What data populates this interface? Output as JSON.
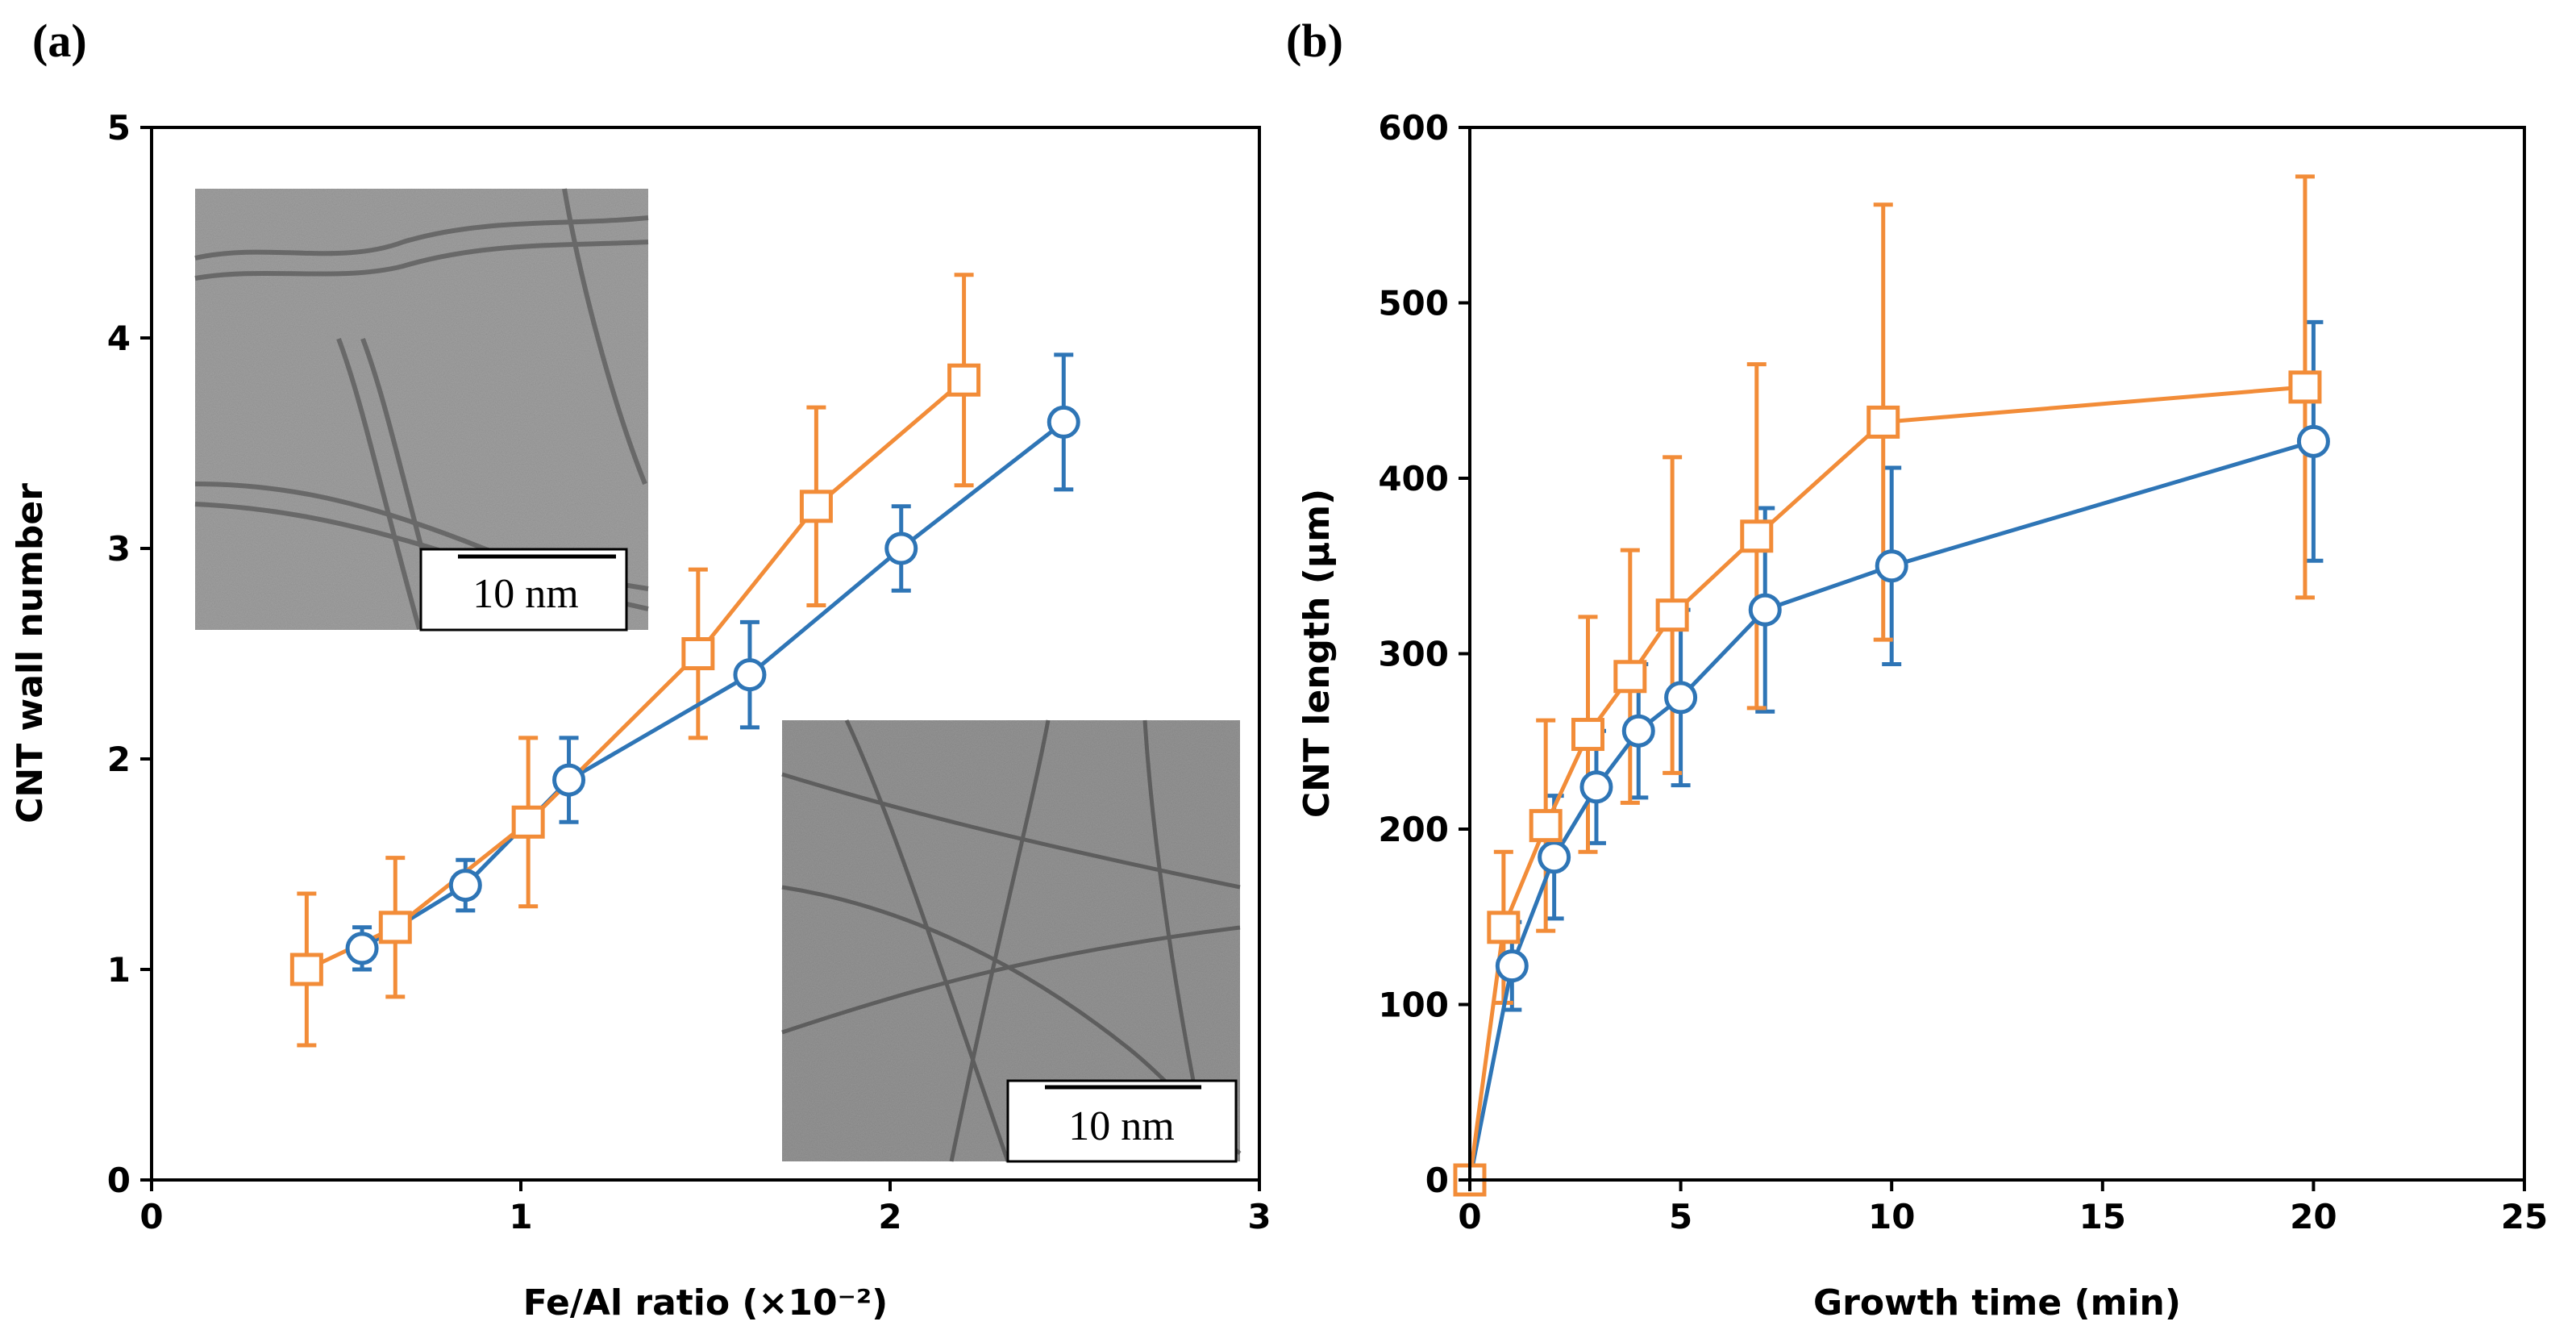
{
  "chart_data": [
    {
      "panel": "(a)",
      "type": "line",
      "xlabel": "Fe/Al ratio (×10⁻²)",
      "ylabel": "CNT wall number",
      "xlim": [
        0,
        3
      ],
      "ylim": [
        0,
        5
      ],
      "xticks": [
        "0",
        "1",
        "2",
        "3"
      ],
      "yticks": [
        "0",
        "1",
        "2",
        "3",
        "4",
        "5"
      ],
      "series": [
        {
          "name": "circle",
          "marker": "circle",
          "color": "#2E75B6",
          "x": [
            0.57,
            0.85,
            1.13,
            1.62,
            2.03,
            2.47
          ],
          "y": [
            1.1,
            1.4,
            1.9,
            2.4,
            3.0,
            3.6
          ],
          "err": [
            0.1,
            0.12,
            0.2,
            0.25,
            0.2,
            0.32
          ]
        },
        {
          "name": "square",
          "marker": "square",
          "color": "#F28C38",
          "x": [
            0.42,
            0.66,
            1.02,
            1.48,
            1.8,
            2.2
          ],
          "y": [
            1.0,
            1.2,
            1.7,
            2.5,
            3.2,
            3.8
          ],
          "err": [
            0.36,
            0.33,
            0.4,
            0.4,
            0.47,
            0.5
          ]
        }
      ],
      "insets": [
        {
          "name": "tem-image-top",
          "scale_label": "10 nm"
        },
        {
          "name": "tem-image-bottom",
          "scale_label": "10 nm"
        }
      ]
    },
    {
      "panel": "(b)",
      "type": "line",
      "xlabel": "Growth time (min)",
      "ylabel": "CNT length (μm)",
      "xlim": [
        0,
        25
      ],
      "ylim": [
        0,
        600
      ],
      "xticks": [
        "0",
        "5",
        "10",
        "15",
        "20",
        "25"
      ],
      "yticks": [
        "0",
        "100",
        "200",
        "300",
        "400",
        "500",
        "600"
      ],
      "series": [
        {
          "name": "circle",
          "marker": "circle",
          "color": "#2E75B6",
          "x": [
            0,
            1,
            2,
            3,
            4,
            5,
            7,
            10,
            20
          ],
          "y": [
            0,
            122,
            184,
            224,
            256,
            275,
            325,
            350,
            421
          ],
          "err": [
            0,
            25,
            35,
            32,
            38,
            50,
            58,
            56,
            68
          ]
        },
        {
          "name": "square",
          "marker": "square",
          "color": "#F28C38",
          "x": [
            0,
            0.8,
            1.8,
            2.8,
            3.8,
            4.8,
            6.8,
            9.8,
            19.8
          ],
          "y": [
            0,
            144,
            202,
            254,
            287,
            322,
            367,
            432,
            452
          ],
          "err": [
            0,
            43,
            60,
            67,
            72,
            90,
            98,
            124,
            120
          ]
        }
      ]
    }
  ]
}
